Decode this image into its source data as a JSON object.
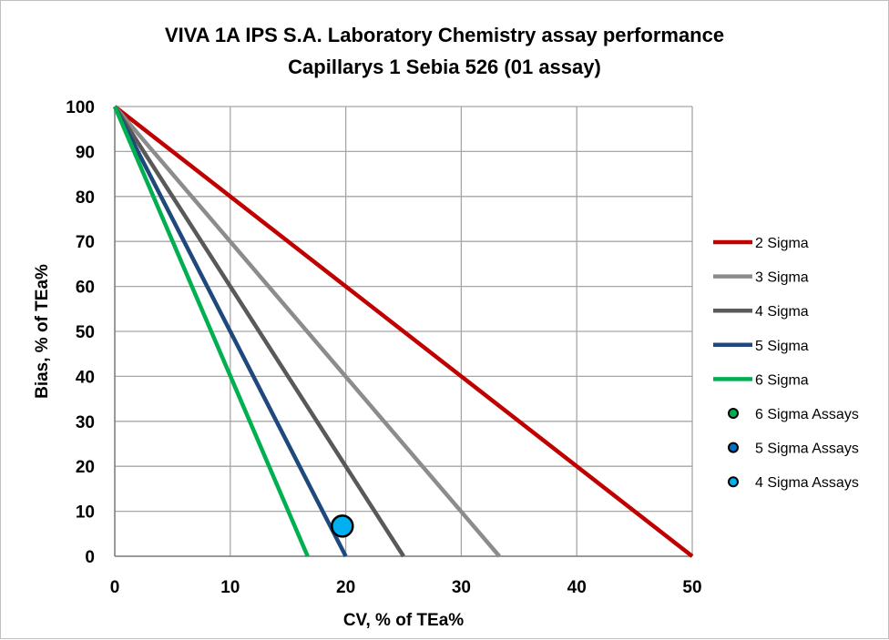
{
  "chart_data": {
    "type": "line",
    "title": [
      "VIVA 1A IPS S.A. Laboratory Chemistry assay performance",
      "Capillarys 1 Sebia 526 (01 assay)"
    ],
    "xlabel": "CV, % of TEa%",
    "ylabel": "Bias, % of TEa%",
    "xlim": [
      0,
      50
    ],
    "ylim": [
      0,
      100
    ],
    "xticks": [
      0,
      10,
      20,
      30,
      40,
      50
    ],
    "yticks": [
      0,
      10,
      20,
      30,
      40,
      50,
      60,
      70,
      80,
      90,
      100
    ],
    "grid": true,
    "legend_position": "right",
    "series": [
      {
        "name": "2 Sigma",
        "color": "#c00000",
        "points": [
          [
            0,
            100
          ],
          [
            50,
            0
          ]
        ]
      },
      {
        "name": "3 Sigma",
        "color": "#8c8c8c",
        "points": [
          [
            0,
            100
          ],
          [
            33.3,
            0
          ]
        ]
      },
      {
        "name": "4 Sigma",
        "color": "#595959",
        "points": [
          [
            0,
            100
          ],
          [
            25,
            0
          ]
        ]
      },
      {
        "name": "5 Sigma",
        "color": "#1f497d",
        "points": [
          [
            0,
            100
          ],
          [
            20,
            0
          ]
        ]
      },
      {
        "name": "6 Sigma",
        "color": "#00b050",
        "points": [
          [
            0,
            100
          ],
          [
            16.7,
            0
          ]
        ]
      }
    ],
    "scatter": [
      {
        "name": "6 Sigma Assays",
        "color": "#00b050",
        "points": []
      },
      {
        "name": "5 Sigma Assays",
        "color": "#0070c0",
        "points": []
      },
      {
        "name": "4 Sigma Assays",
        "color": "#00b0f0",
        "points": [
          [
            19.7,
            6.7
          ]
        ]
      }
    ]
  }
}
